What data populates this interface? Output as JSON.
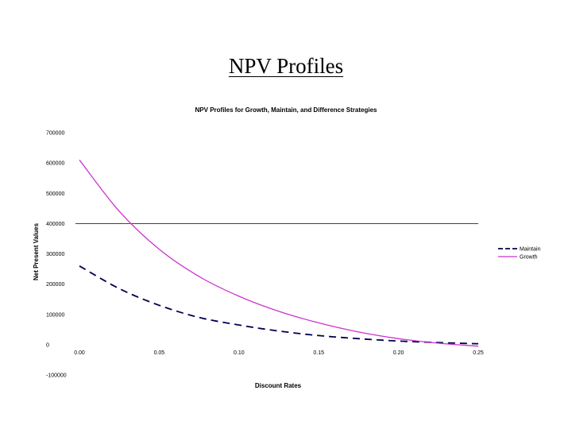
{
  "slide": {
    "title": "NPV Profiles"
  },
  "chart_data": {
    "type": "line",
    "title": "NPV Profiles for Growth, Maintain, and Difference Strategies",
    "xlabel": "Discount Rates",
    "ylabel": "Net Present Values",
    "x": [
      0.0,
      0.025,
      0.05,
      0.075,
      0.1,
      0.125,
      0.15,
      0.175,
      0.2,
      0.225,
      0.25
    ],
    "x_ticks": [
      "0.00",
      "0.05",
      "0.10",
      "0.15",
      "0.20",
      "0.25"
    ],
    "y_ticks": [
      "-100000",
      "0",
      "100000",
      "200000",
      "300000",
      "400000",
      "500000",
      "600000",
      "700000"
    ],
    "xlim": [
      0,
      0.25
    ],
    "ylim": [
      -100000,
      700000
    ],
    "reference_line": 400000,
    "grid": false,
    "legend_position": "right",
    "series": [
      {
        "name": "Maintain",
        "color": "#00004d",
        "style": "dashed",
        "values": [
          260000,
          185000,
          130000,
          90000,
          65000,
          45000,
          30000,
          20000,
          12000,
          7000,
          3000
        ]
      },
      {
        "name": "Growth",
        "color": "#cc33cc",
        "style": "solid",
        "values": [
          610000,
          440000,
          315000,
          225000,
          160000,
          110000,
          72000,
          42000,
          20000,
          5000,
          -5000
        ]
      }
    ]
  }
}
